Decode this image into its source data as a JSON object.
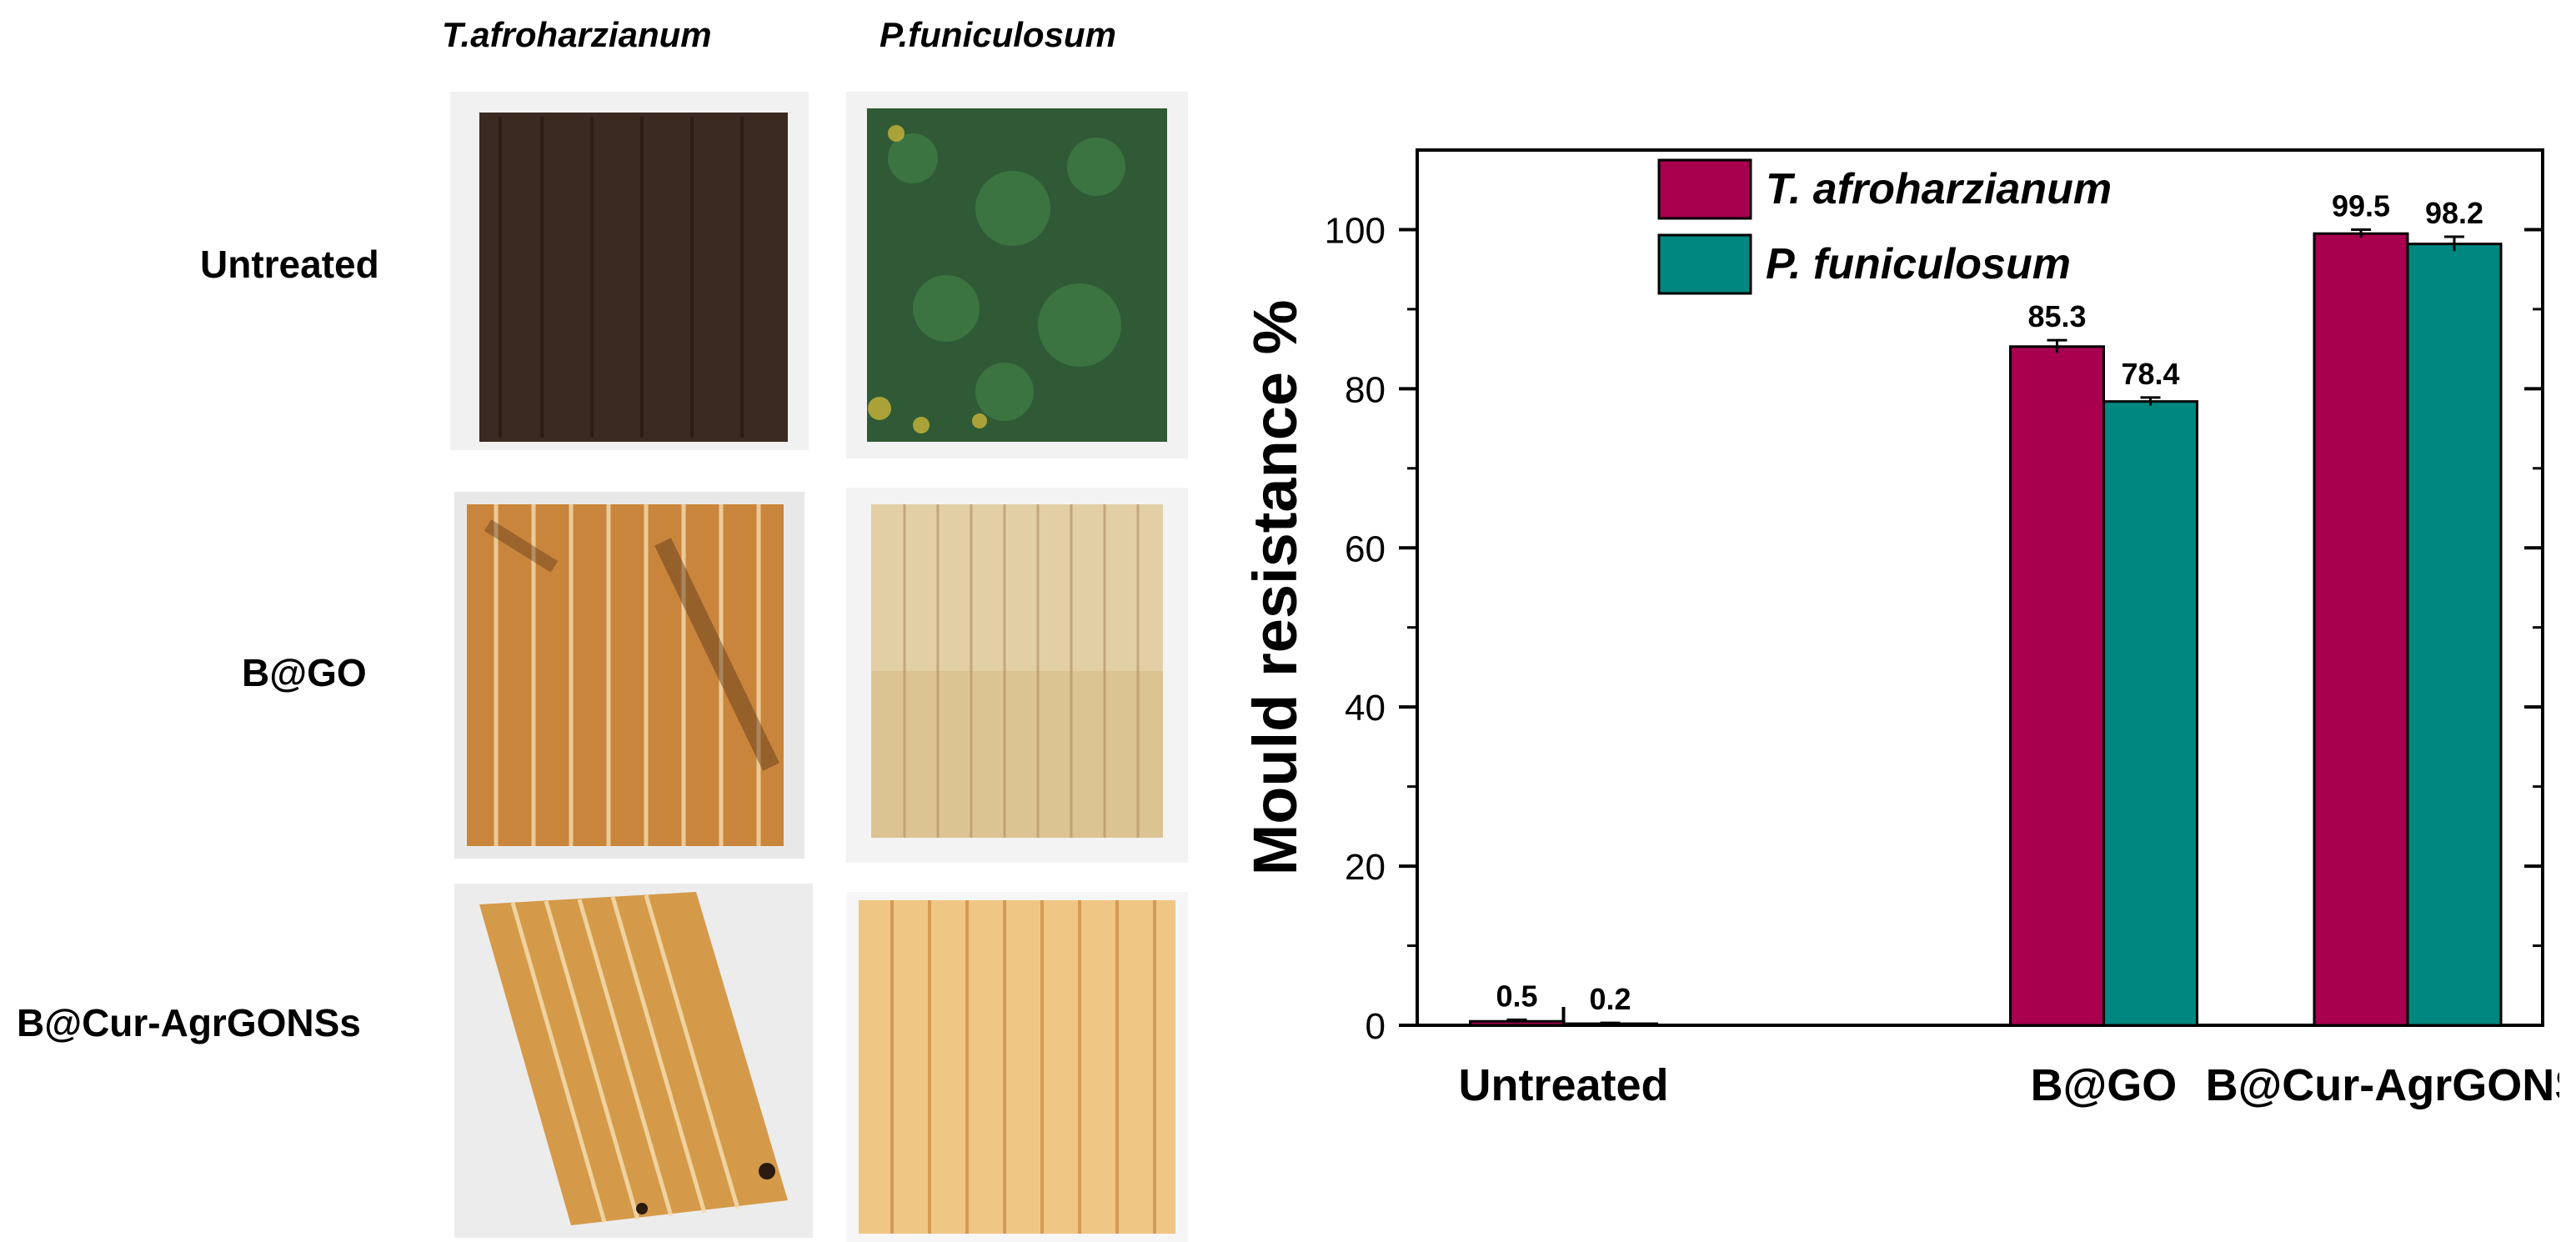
{
  "photos": {
    "columns": [
      "T.afroharzianum",
      "P.funiculosum"
    ],
    "rows": [
      "Untreated",
      "B@GO",
      "B@Cur-AgrGONSs"
    ],
    "colors": {
      "untreated_t": "#3a2a22",
      "untreated_p": "#2f5a35",
      "bgo_t": "#c9853c",
      "bgo_p": "#e2cfa5",
      "bcur_t": "#d49a4a",
      "bcur_p": "#f0c685"
    }
  },
  "chart_data": {
    "type": "bar",
    "categories": [
      "Untreated",
      "B@GO",
      "B@Cur-AgrGONSs"
    ],
    "series": [
      {
        "name": "T. afroharzianum",
        "values": [
          0.5,
          85.3,
          99.5
        ],
        "errors": [
          0.2,
          0.8,
          0.5
        ],
        "color": "#a8004f"
      },
      {
        "name": "P. funiculosum",
        "values": [
          0.2,
          78.4,
          98.2
        ],
        "errors": [
          0.1,
          0.5,
          0.9
        ],
        "color": "#00877f"
      }
    ],
    "data_labels": [
      [
        "0.5",
        "85.3",
        "99.5"
      ],
      [
        "0.2",
        "78.4",
        "98.2"
      ]
    ],
    "ylabel": "Mould resistance %",
    "xlabel": "",
    "ylim": [
      0,
      110
    ],
    "yticks": [
      0,
      20,
      40,
      60,
      80,
      100
    ],
    "legend_position": "top-left",
    "grid": false
  }
}
